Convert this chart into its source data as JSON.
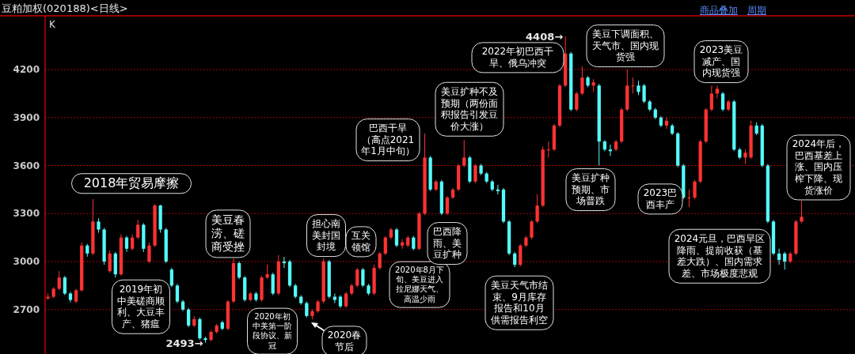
{
  "chart_data": {
    "type": "candlestick",
    "title": "豆粕加权(020188)<日线>",
    "ylim": [
      2422,
      4536
    ],
    "yticks": [
      2700,
      3000,
      3300,
      3600,
      3900,
      4200
    ],
    "grid": "y",
    "categories": [
      null,
      null,
      null,
      null,
      null,
      null,
      null,
      null,
      null,
      null,
      null,
      null,
      null,
      null,
      null,
      null,
      null,
      null,
      null,
      null,
      null,
      null,
      null,
      null,
      null,
      null,
      null,
      null,
      null,
      null,
      null,
      null,
      null,
      null,
      null,
      null,
      null,
      null,
      null,
      null,
      null,
      null,
      null,
      null,
      null,
      null,
      null,
      null,
      null,
      null,
      null,
      null,
      null,
      null,
      null,
      null,
      null,
      null,
      null,
      null,
      null,
      null,
      null,
      null,
      null,
      null,
      null,
      null,
      null,
      null,
      null,
      null,
      null,
      null,
      null,
      null,
      null,
      null,
      null,
      null,
      null,
      null,
      null,
      null,
      null,
      null,
      null,
      null,
      null,
      null,
      null,
      null,
      null,
      null,
      null,
      null,
      null,
      null,
      null,
      null,
      null,
      null,
      null,
      null,
      null,
      null,
      null,
      null,
      null,
      null,
      null,
      null,
      null,
      null,
      null,
      null,
      null,
      null,
      null,
      null,
      null,
      null,
      null,
      null,
      null,
      null,
      null,
      null,
      null,
      null,
      null,
      null,
      null,
      null,
      null,
      null,
      null,
      null,
      null,
      null,
      null,
      null,
      null,
      null
    ],
    "ohlc": [
      [
        2770,
        2800,
        2760,
        2780
      ],
      [
        2780,
        2840,
        2770,
        2830
      ],
      [
        2830,
        2940,
        2820,
        2900
      ],
      [
        2900,
        2910,
        2790,
        2800
      ],
      [
        2800,
        2810,
        2745,
        2760
      ],
      [
        2750,
        2830,
        2740,
        2820
      ],
      [
        2820,
        3120,
        2810,
        3100
      ],
      [
        3100,
        3110,
        3030,
        3050
      ],
      [
        3050,
        3390,
        3040,
        3250
      ],
      [
        3250,
        3270,
        3180,
        3200
      ],
      [
        3200,
        3210,
        2980,
        3000
      ],
      [
        2940,
        3070,
        2930,
        3050
      ],
      [
        3050,
        3060,
        2900,
        2920
      ],
      [
        2920,
        3170,
        2910,
        3150
      ],
      [
        3150,
        3160,
        3060,
        3080
      ],
      [
        3080,
        3170,
        3070,
        3150
      ],
      [
        3150,
        3260,
        3140,
        3230
      ],
      [
        3230,
        3240,
        3060,
        3080
      ],
      [
        3000,
        3120,
        2990,
        3100
      ],
      [
        3100,
        3360,
        3090,
        3350
      ],
      [
        3350,
        3355,
        3180,
        3200
      ],
      [
        3200,
        3210,
        2990,
        3000
      ],
      [
        2950,
        2960,
        2840,
        2850
      ],
      [
        2850,
        2860,
        2740,
        2750
      ],
      [
        2750,
        2760,
        2690,
        2700
      ],
      [
        2700,
        2710,
        2590,
        2600
      ],
      [
        2600,
        2660,
        2590,
        2640
      ],
      [
        2640,
        2650,
        2510,
        2520
      ],
      [
        2520,
        2530,
        2493,
        2510
      ],
      [
        2510,
        2570,
        2500,
        2560
      ],
      [
        2560,
        2610,
        2550,
        2600
      ],
      [
        2620,
        2630,
        2570,
        2580
      ],
      [
        2580,
        2760,
        2570,
        2750
      ],
      [
        2750,
        3020,
        2740,
        2990
      ],
      [
        2990,
        3000,
        2890,
        2900
      ],
      [
        2900,
        2910,
        2750,
        2760
      ],
      [
        2760,
        2810,
        2750,
        2800
      ],
      [
        2800,
        2810,
        2750,
        2760
      ],
      [
        2760,
        2910,
        2750,
        2900
      ],
      [
        2900,
        2980,
        2890,
        2920
      ],
      [
        2920,
        2930,
        2790,
        2800
      ],
      [
        2800,
        3040,
        2790,
        3000
      ],
      [
        3000,
        3030,
        2960,
        2990
      ],
      [
        3000,
        3010,
        2840,
        2850
      ],
      [
        2850,
        2860,
        2770,
        2780
      ],
      [
        2780,
        2790,
        2730,
        2740
      ],
      [
        2740,
        2750,
        2650,
        2660
      ],
      [
        2660,
        2700,
        2640,
        2690
      ],
      [
        2690,
        2760,
        2680,
        2750
      ],
      [
        2750,
        3020,
        2740,
        3000
      ],
      [
        3000,
        3010,
        2770,
        2780
      ],
      [
        2780,
        2800,
        2740,
        2760
      ],
      [
        2780,
        2790,
        2710,
        2720
      ],
      [
        2720,
        2810,
        2710,
        2800
      ],
      [
        2800,
        2860,
        2790,
        2850
      ],
      [
        2850,
        2960,
        2840,
        2950
      ],
      [
        2950,
        2960,
        2840,
        2850
      ],
      [
        2850,
        2860,
        2790,
        2800
      ],
      [
        2800,
        2980,
        2790,
        2960
      ],
      [
        2960,
        3060,
        2950,
        3050
      ],
      [
        3050,
        3160,
        3040,
        3150
      ],
      [
        3150,
        3210,
        3140,
        3200
      ],
      [
        3200,
        3210,
        3090,
        3100
      ],
      [
        3100,
        3140,
        3080,
        3120
      ],
      [
        3100,
        3160,
        3090,
        3150
      ],
      [
        3150,
        3160,
        3070,
        3080
      ],
      [
        3080,
        3310,
        3070,
        3300
      ],
      [
        3300,
        3800,
        3290,
        3650
      ],
      [
        3650,
        3660,
        3440,
        3450
      ],
      [
        3450,
        3510,
        3440,
        3500
      ],
      [
        3500,
        3510,
        3290,
        3300
      ],
      [
        3300,
        3410,
        3290,
        3400
      ],
      [
        3400,
        3460,
        3390,
        3450
      ],
      [
        3450,
        3610,
        3440,
        3600
      ],
      [
        3600,
        3760,
        3590,
        3650
      ],
      [
        3650,
        3660,
        3490,
        3500
      ],
      [
        3500,
        3610,
        3490,
        3600
      ],
      [
        3600,
        3610,
        3540,
        3550
      ],
      [
        3550,
        3560,
        3490,
        3500
      ],
      [
        3500,
        3510,
        3440,
        3450
      ],
      [
        3450,
        3480,
        3420,
        3440
      ],
      [
        3450,
        3460,
        3240,
        3250
      ],
      [
        3250,
        3260,
        3040,
        3050
      ],
      [
        3050,
        3060,
        2965,
        2980
      ],
      [
        2980,
        3110,
        2970,
        3100
      ],
      [
        3100,
        3160,
        3090,
        3150
      ],
      [
        3150,
        3260,
        3140,
        3250
      ],
      [
        3250,
        3420,
        3240,
        3350
      ],
      [
        3350,
        3720,
        3340,
        3700
      ],
      [
        3700,
        3750,
        3650,
        3700
      ],
      [
        3700,
        3860,
        3690,
        3850
      ],
      [
        3850,
        4110,
        3840,
        4100
      ],
      [
        4100,
        4408,
        4090,
        4300
      ],
      [
        4300,
        4310,
        3940,
        3950
      ],
      [
        3950,
        4060,
        3940,
        4050
      ],
      [
        4050,
        4220,
        4040,
        4150
      ],
      [
        4150,
        4160,
        4090,
        4100
      ],
      [
        4100,
        4140,
        4060,
        4120
      ],
      [
        4100,
        4110,
        3600,
        3750
      ],
      [
        3750,
        3760,
        3690,
        3700
      ],
      [
        3700,
        3730,
        3660,
        3690
      ],
      [
        3700,
        3760,
        3690,
        3750
      ],
      [
        3750,
        3960,
        3740,
        3950
      ],
      [
        3950,
        4200,
        3940,
        4100
      ],
      [
        4100,
        4150,
        4050,
        4100
      ],
      [
        4100,
        4130,
        4040,
        4060
      ],
      [
        4100,
        4110,
        3990,
        4000
      ],
      [
        4000,
        4010,
        3940,
        3950
      ],
      [
        3950,
        3960,
        3890,
        3900
      ],
      [
        3900,
        3910,
        3840,
        3850
      ],
      [
        3850,
        3900,
        3830,
        3880
      ],
      [
        3850,
        3860,
        3790,
        3800
      ],
      [
        3800,
        3810,
        3590,
        3600
      ],
      [
        3600,
        3610,
        3390,
        3400
      ],
      [
        3400,
        3450,
        3340,
        3400
      ],
      [
        3400,
        3510,
        3390,
        3500
      ],
      [
        3500,
        3760,
        3490,
        3750
      ],
      [
        3750,
        3960,
        3740,
        3950
      ],
      [
        3950,
        4100,
        3940,
        4050
      ],
      [
        4050,
        4100,
        4020,
        4080
      ],
      [
        4050,
        4060,
        3940,
        3950
      ],
      [
        3950,
        4010,
        3940,
        4000
      ],
      [
        4000,
        4010,
        3690,
        3700
      ],
      [
        3700,
        3710,
        3640,
        3650
      ],
      [
        3650,
        3700,
        3610,
        3680
      ],
      [
        3650,
        3880,
        3640,
        3850
      ],
      [
        3850,
        3870,
        3790,
        3800
      ],
      [
        3850,
        3860,
        3590,
        3600
      ],
      [
        3600,
        3610,
        3240,
        3250
      ],
      [
        3250,
        3260,
        3040,
        3050
      ],
      [
        3050,
        3080,
        2980,
        3010
      ],
      [
        3050,
        3060,
        2950,
        3000
      ],
      [
        3000,
        3060,
        2990,
        3050
      ],
      [
        3050,
        3260,
        3040,
        3250
      ],
      [
        3250,
        3380,
        3240,
        3280
      ],
      null,
      null,
      null,
      null,
      null,
      null,
      null,
      null,
      null
    ],
    "colors": [
      "#ff3232",
      "#ff3232",
      "#ff3232",
      "#54fcfc",
      "#54fcfc",
      "#ff3232",
      "#ff3232",
      "#54fcfc",
      "#ff3232",
      "#54fcfc",
      "#54fcfc",
      "#ff3232",
      "#54fcfc",
      "#ff3232",
      "#54fcfc",
      "#ff3232",
      "#ff3232",
      "#54fcfc",
      "#ff3232",
      "#ff3232",
      "#54fcfc",
      "#54fcfc",
      "#54fcfc",
      "#54fcfc",
      "#54fcfc",
      "#54fcfc",
      "#ff3232",
      "#54fcfc",
      "#54fcfc",
      "#ff3232",
      "#ff3232",
      "#54fcfc",
      "#ff3232",
      "#ff3232",
      "#54fcfc",
      "#54fcfc",
      "#ff3232",
      "#54fcfc",
      "#ff3232",
      "#ff3232",
      "#54fcfc",
      "#ff3232",
      "#54fcfc",
      "#54fcfc",
      "#54fcfc",
      "#54fcfc",
      "#54fcfc",
      "#ff3232",
      "#ff3232",
      "#ff3232",
      "#54fcfc",
      "#54fcfc",
      "#54fcfc",
      "#ff3232",
      "#ff3232",
      "#ff3232",
      "#54fcfc",
      "#54fcfc",
      "#ff3232",
      "#ff3232",
      "#ff3232",
      "#ff3232",
      "#54fcfc",
      "#ff3232",
      "#ff3232",
      "#54fcfc",
      "#ff3232",
      "#ff3232",
      "#54fcfc",
      "#ff3232",
      "#54fcfc",
      "#ff3232",
      "#ff3232",
      "#ff3232",
      "#ff3232",
      "#54fcfc",
      "#ff3232",
      "#54fcfc",
      "#54fcfc",
      "#54fcfc",
      "#54fcfc",
      "#54fcfc",
      "#54fcfc",
      "#54fcfc",
      "#ff3232",
      "#ff3232",
      "#ff3232",
      "#ff3232",
      "#ff3232",
      "#ff3232",
      "#ff3232",
      "#ff3232",
      "#ff3232",
      "#54fcfc",
      "#ff3232",
      "#ff3232",
      "#54fcfc",
      "#ff3232",
      "#54fcfc",
      "#54fcfc",
      "#54fcfc",
      "#ff3232",
      "#ff3232",
      "#ff3232",
      "#ff3232",
      "#54fcfc",
      "#54fcfc",
      "#54fcfc",
      "#54fcfc",
      "#54fcfc",
      "#ff3232",
      "#54fcfc",
      "#54fcfc",
      "#54fcfc",
      "#ff3232",
      "#ff3232",
      "#ff3232",
      "#ff3232",
      "#ff3232",
      "#ff3232",
      "#54fcfc",
      "#ff3232",
      "#54fcfc",
      "#54fcfc",
      "#ff3232",
      "#ff3232",
      "#54fcfc",
      "#54fcfc",
      "#54fcfc",
      "#54fcfc",
      "#54fcfc",
      "#54fcfc",
      "#ff3232",
      "#ff3232",
      "#ff3232",
      null,
      null,
      null,
      null,
      null,
      null,
      null,
      null,
      null
    ],
    "annotations": [
      "2018年贸易摩擦",
      "2019年初中美磋商顺利、大豆丰产、猪瘟",
      "美豆春涝、磋商受挫",
      "担心南美封国封境",
      "互关领馆",
      "2020年初中美第一阶段协议、新冠",
      "2020春节后",
      "2020年8月下旬、美豆进入拉尼娜天气、高温少雨",
      "巴西干旱（高点2021年1月中旬）",
      "美豆扩种不及预期（两份面积报告引发豆价大涨）",
      "巴西降雨、美豆扩种",
      "2022年初巴西干旱、俄乌冲突",
      "美豆下调面积、天气市、国内现货强",
      "美豆扩种预期、市场普跌",
      "美豆天气市结束、9月库存报告和10月供需报告利空",
      "2023美豆减产、国内现货强",
      "2023巴西丰产",
      "2024元旦，巴西旱区降雨、提前收获（基差大跌）、国内需求差、市场极度悲观",
      "2024年后，巴西基差上涨、国内压榨下降、现货涨价",
      "K",
      "商品叠加",
      "周期",
      "4408→",
      "2493→"
    ]
  }
}
